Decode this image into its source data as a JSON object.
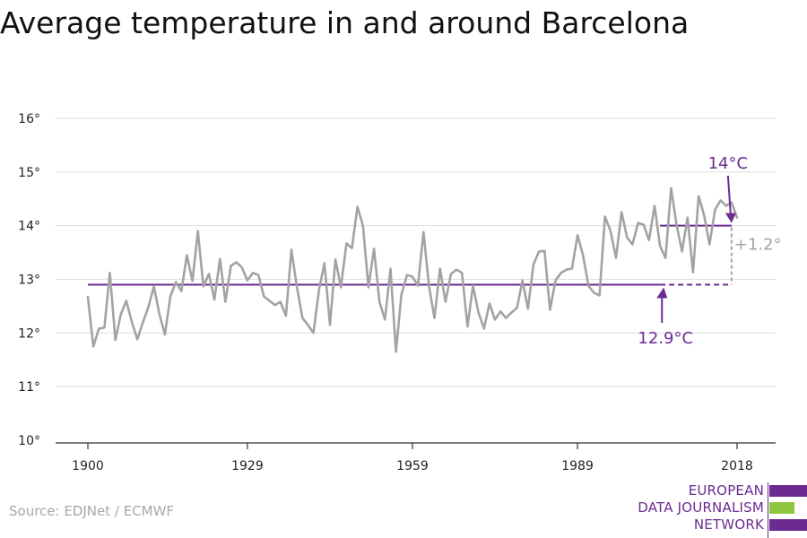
{
  "title": "Average temperature in and around Barcelona",
  "source": "Source: EDJNet / ECMWF",
  "logo": {
    "lines": [
      "EUROPEAN",
      "DATA JOURNALISM",
      "NETWORK"
    ],
    "colors": {
      "purple": "#6b2b91",
      "green": "#8ec63f"
    }
  },
  "colors": {
    "series": "#a3a3a3",
    "average": "#6b2b91",
    "difference": "#a3a3a3",
    "grid": "#dedede"
  },
  "chart_data": {
    "type": "line",
    "title": "Average temperature in and around Barcelona",
    "xlabel": "",
    "ylabel": "",
    "ylim": [
      10,
      16
    ],
    "xlim": [
      1900,
      2018
    ],
    "yticks": [
      "10°",
      "11°",
      "12°",
      "13°",
      "14°",
      "15°",
      "16°"
    ],
    "xticks": [
      "1900",
      "1929",
      "1959",
      "1989",
      "2018"
    ],
    "grid": true,
    "x": [
      1900,
      1901,
      1902,
      1903,
      1904,
      1905,
      1906,
      1907,
      1908,
      1909,
      1910,
      1911,
      1912,
      1913,
      1914,
      1915,
      1916,
      1917,
      1918,
      1919,
      1920,
      1921,
      1922,
      1923,
      1924,
      1925,
      1926,
      1927,
      1928,
      1929,
      1930,
      1931,
      1932,
      1933,
      1934,
      1935,
      1936,
      1937,
      1938,
      1939,
      1940,
      1941,
      1942,
      1943,
      1944,
      1945,
      1946,
      1947,
      1948,
      1949,
      1950,
      1951,
      1952,
      1953,
      1954,
      1955,
      1956,
      1957,
      1958,
      1959,
      1960,
      1961,
      1962,
      1963,
      1964,
      1965,
      1966,
      1967,
      1968,
      1969,
      1970,
      1971,
      1972,
      1973,
      1974,
      1975,
      1976,
      1977,
      1978,
      1979,
      1980,
      1981,
      1982,
      1983,
      1984,
      1985,
      1986,
      1987,
      1988,
      1989,
      1990,
      1991,
      1992,
      1993,
      1994,
      1995,
      1996,
      1997,
      1998,
      1999,
      2000,
      2001,
      2002,
      2003,
      2004,
      2005,
      2006,
      2007,
      2008,
      2009,
      2010,
      2011,
      2012,
      2013,
      2014,
      2015,
      2016,
      2017,
      2018
    ],
    "series": [
      {
        "values": [
          12.67,
          11.75,
          12.08,
          12.1,
          13.12,
          11.87,
          12.35,
          12.6,
          12.2,
          11.88,
          12.2,
          12.48,
          12.87,
          12.35,
          11.97,
          12.68,
          12.95,
          12.78,
          13.45,
          12.97,
          13.9,
          12.87,
          13.1,
          12.62,
          13.38,
          12.58,
          13.25,
          13.32,
          13.22,
          12.98,
          13.12,
          13.08,
          12.68,
          12.6,
          12.52,
          12.58,
          12.32,
          13.55,
          12.85,
          12.28,
          12.15,
          12.0,
          12.8,
          13.3,
          12.15,
          13.37,
          12.85,
          13.67,
          13.58,
          14.35,
          14.0,
          12.85,
          13.57,
          12.58,
          12.25,
          13.2,
          11.65,
          12.72,
          13.08,
          13.05,
          12.88,
          13.88,
          12.88,
          12.28,
          13.2,
          12.58,
          13.1,
          13.18,
          13.12,
          12.12,
          12.88,
          12.38,
          12.08,
          12.55,
          12.25,
          12.4,
          12.28,
          12.38,
          12.47,
          12.98,
          12.45,
          13.28,
          13.52,
          13.53,
          12.43,
          12.98,
          13.12,
          13.18,
          13.2,
          13.82,
          13.45,
          12.88,
          12.75,
          12.7,
          14.17,
          13.9,
          13.4,
          14.25,
          13.78,
          13.65,
          14.05,
          14.02,
          13.73,
          14.37,
          13.62,
          13.4,
          14.7,
          14.02,
          13.52,
          14.15,
          13.13,
          14.55,
          14.2,
          13.65,
          14.3,
          14.47,
          14.37,
          14.43,
          14.15
        ]
      }
    ],
    "annotations": {
      "baseline_value": 12.9,
      "baseline_from": 1900,
      "baseline_to": 2004,
      "baseline_dashed_to": 2017,
      "baseline_label": "12.9°C",
      "recent_value": 14.0,
      "recent_from": 2004,
      "recent_to": 2017,
      "recent_label": "14°C",
      "difference_label": "+1.2°"
    }
  }
}
